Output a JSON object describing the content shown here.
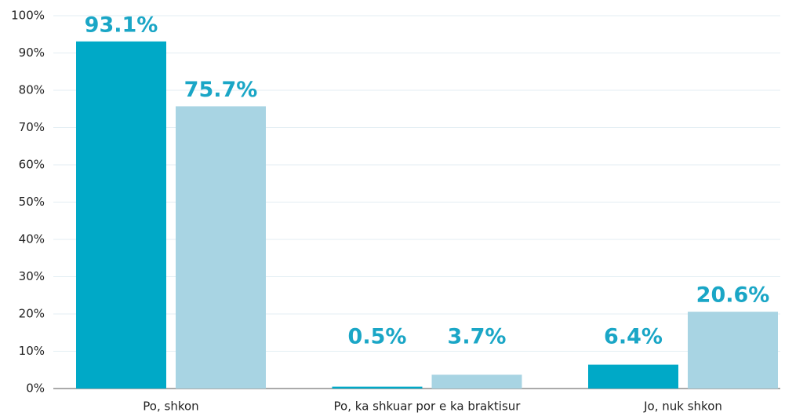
{
  "chart_data": {
    "type": "bar",
    "categories": [
      "Po, shkon",
      "Po, ka shkuar por e ka braktisur",
      "Jo, nuk shkon"
    ],
    "series": [
      {
        "color": "#00a9c7",
        "values": [
          93.1,
          0.5,
          6.4
        ],
        "value_labels": [
          "93.1%",
          "0.5%",
          "6.4%"
        ]
      },
      {
        "color": "#a8d4e3",
        "values": [
          75.7,
          3.7,
          20.6
        ],
        "value_labels": [
          "75.7%",
          "3.7%",
          "20.6%"
        ]
      }
    ],
    "label_color": "#1aa6c6",
    "ylim": [
      0,
      100
    ],
    "yticks": [
      {
        "value": 0,
        "label": "0%"
      },
      {
        "value": 10,
        "label": "10%"
      },
      {
        "value": 20,
        "label": "20%"
      },
      {
        "value": 30,
        "label": "30%"
      },
      {
        "value": 40,
        "label": "40%"
      },
      {
        "value": 50,
        "label": "50%"
      },
      {
        "value": 60,
        "label": "60%"
      },
      {
        "value": 70,
        "label": "70%"
      },
      {
        "value": 80,
        "label": "80%"
      },
      {
        "value": 90,
        "label": "90%"
      },
      {
        "value": 100,
        "label": "100%"
      }
    ],
    "grid": true
  }
}
